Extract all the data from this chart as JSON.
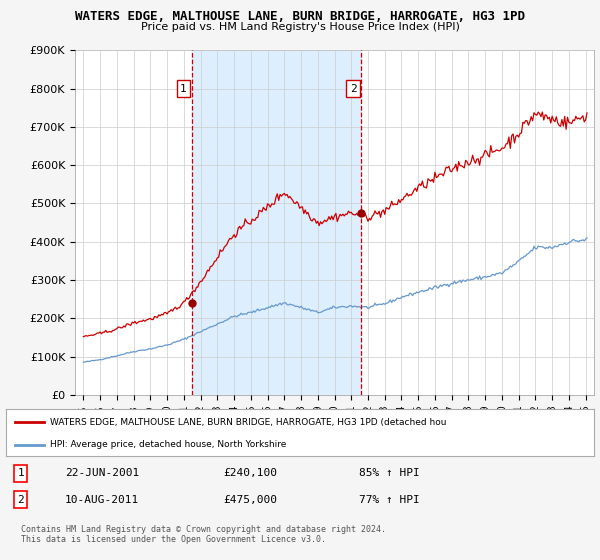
{
  "title": "WATERS EDGE, MALTHOUSE LANE, BURN BRIDGE, HARROGATE, HG3 1PD",
  "subtitle": "Price paid vs. HM Land Registry's House Price Index (HPI)",
  "ylim": [
    0,
    900000
  ],
  "yticks": [
    0,
    100000,
    200000,
    300000,
    400000,
    500000,
    600000,
    700000,
    800000,
    900000
  ],
  "ytick_labels": [
    "£0",
    "£100K",
    "£200K",
    "£300K",
    "£400K",
    "£500K",
    "£600K",
    "£700K",
    "£800K",
    "£900K"
  ],
  "plot_bg_color": "#ffffff",
  "fig_bg_color": "#f5f5f5",
  "grid_color": "#cccccc",
  "shade_color": "#ddeeff",
  "property_color": "#cc0000",
  "hpi_color": "#6699cc",
  "marker1_year": 2001.47,
  "marker1_value": 240100,
  "marker2_year": 2011.61,
  "marker2_value": 475000,
  "label1_value": 800000,
  "label2_value": 800000,
  "legend_property": "WATERS EDGE, MALTHOUSE LANE, BURN BRIDGE, HARROGATE, HG3 1PD (detached hou",
  "legend_hpi": "HPI: Average price, detached house, North Yorkshire",
  "note1_num": "1",
  "note1_date": "22-JUN-2001",
  "note1_price": "£240,100",
  "note1_hpi": "85% ↑ HPI",
  "note2_num": "2",
  "note2_date": "10-AUG-2011",
  "note2_price": "£475,000",
  "note2_hpi": "77% ↑ HPI",
  "footer": "Contains HM Land Registry data © Crown copyright and database right 2024.\nThis data is licensed under the Open Government Licence v3.0.",
  "xlim": [
    1994.5,
    2025.5
  ],
  "xtick_years": [
    1995,
    1996,
    1997,
    1998,
    1999,
    2000,
    2001,
    2002,
    2003,
    2004,
    2005,
    2006,
    2007,
    2008,
    2009,
    2010,
    2011,
    2012,
    2013,
    2014,
    2015,
    2016,
    2017,
    2018,
    2019,
    2020,
    2021,
    2022,
    2023,
    2024,
    2025
  ]
}
